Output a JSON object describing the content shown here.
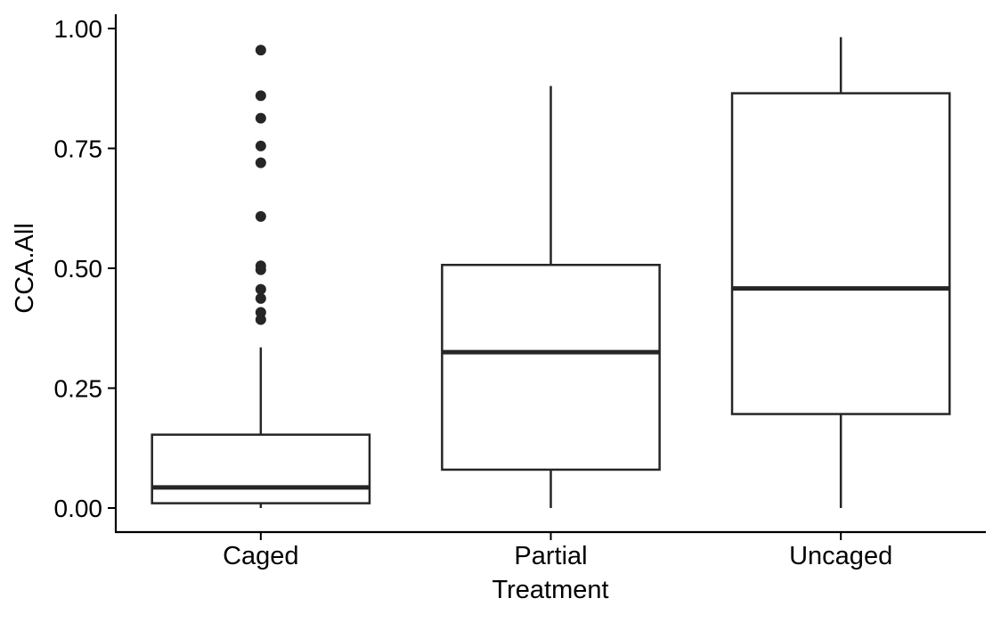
{
  "chart_data": {
    "type": "boxplot",
    "xlabel": "Treatment",
    "ylabel": "CCA.All",
    "ylim": [
      -0.05,
      1.02
    ],
    "yticks": [
      0.0,
      0.25,
      0.5,
      0.75,
      1.0
    ],
    "ytick_labels": [
      "0.00",
      "0.25",
      "0.50",
      "0.75",
      "1.00"
    ],
    "grid": false,
    "categories": [
      "Caged",
      "Partial",
      "Uncaged"
    ],
    "boxes": [
      {
        "category": "Caged",
        "whisker_low": 0.0,
        "q1": 0.01,
        "median": 0.043,
        "q3": 0.153,
        "whisker_high": 0.335,
        "outliers": [
          0.955,
          0.86,
          0.813,
          0.755,
          0.72,
          0.608,
          0.505,
          0.497,
          0.456,
          0.437,
          0.408,
          0.393
        ]
      },
      {
        "category": "Partial",
        "whisker_low": 0.0,
        "q1": 0.08,
        "median": 0.325,
        "q3": 0.507,
        "whisker_high": 0.88,
        "outliers": []
      },
      {
        "category": "Uncaged",
        "whisker_low": 0.0,
        "q1": 0.196,
        "median": 0.458,
        "q3": 0.865,
        "whisker_high": 0.982,
        "outliers": []
      }
    ]
  },
  "colors": {
    "stroke": "#262626",
    "axis": "#000000",
    "box_fill": "#ffffff"
  }
}
